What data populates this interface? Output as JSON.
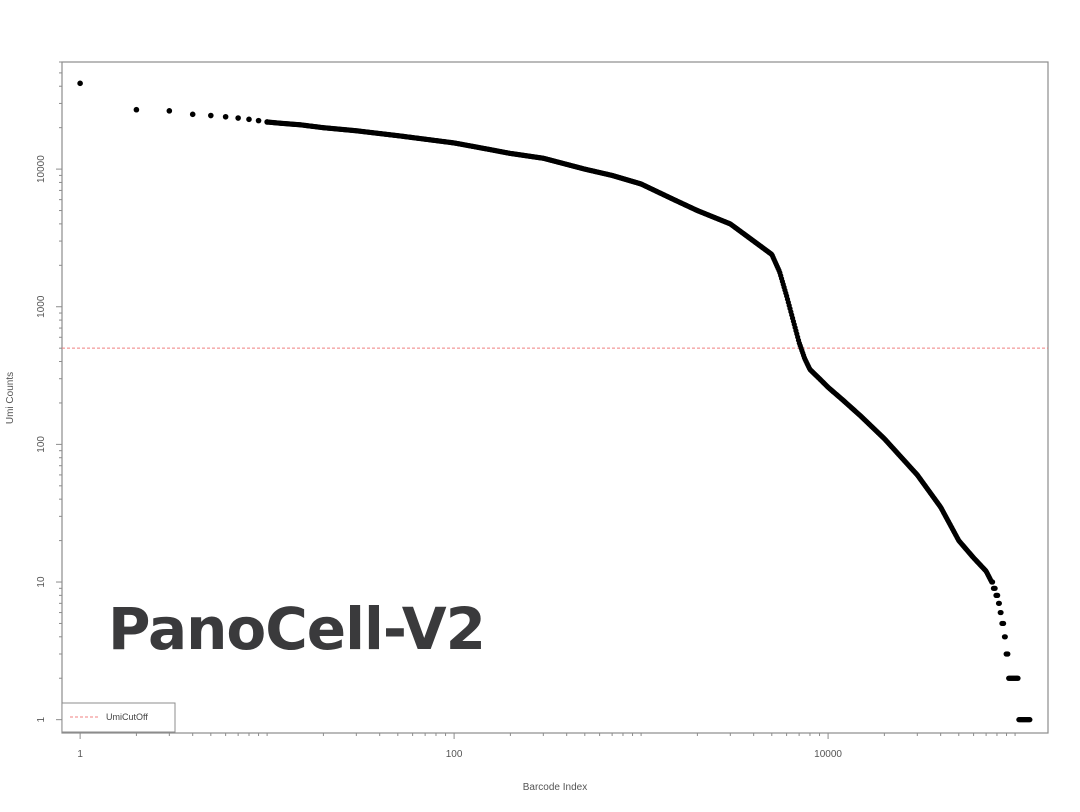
{
  "overlay_label": "PanoCell-V2",
  "chart_data": {
    "type": "scatter",
    "xlabel": "Barcode Index",
    "ylabel": "Umi Counts",
    "x_scale": "log",
    "y_scale": "log",
    "xlim": [
      0.8,
      150000
    ],
    "ylim": [
      0.8,
      60000
    ],
    "x_ticks": [
      1,
      100,
      10000
    ],
    "x_tick_labels": [
      "1",
      "100",
      "10000"
    ],
    "y_ticks": [
      1,
      10,
      100,
      1000,
      10000
    ],
    "y_tick_labels": [
      "1",
      "10",
      "100",
      "1000",
      "10000"
    ],
    "grid": false,
    "legend": {
      "position": "bottom-left",
      "entries": [
        {
          "name": "UmiCutOff",
          "color": "#f08080",
          "style": "dashed"
        }
      ]
    },
    "cutoff_line": {
      "name": "UmiCutOff",
      "y": 500,
      "color": "#f08080"
    },
    "marker_color": "#000000",
    "series": [
      {
        "x": [
          1,
          2,
          3,
          4,
          5,
          6,
          7,
          8,
          9,
          10,
          12,
          15,
          20,
          30,
          50,
          70,
          100,
          150,
          200,
          300,
          500,
          700,
          1000,
          1500,
          2000,
          3000,
          4000,
          5000,
          5500,
          6000,
          6500,
          7000,
          7500,
          8000,
          9000,
          10000,
          12000,
          15000,
          20000,
          30000,
          40000,
          50000,
          60000,
          70000,
          75000,
          78000,
          80000,
          82000,
          84000,
          86000,
          88000,
          90000,
          95000,
          100000,
          110000,
          120000
        ],
        "y": [
          42000,
          27000,
          26500,
          25000,
          24500,
          24000,
          23500,
          23000,
          22500,
          22000,
          21500,
          21000,
          20000,
          19000,
          17500,
          16500,
          15500,
          14000,
          13000,
          12000,
          10000,
          9000,
          7800,
          6000,
          5000,
          4000,
          3000,
          2400,
          1800,
          1200,
          800,
          550,
          420,
          350,
          300,
          260,
          210,
          160,
          110,
          60,
          35,
          20,
          15,
          12,
          10,
          9,
          8,
          7,
          6,
          5,
          4,
          3,
          2,
          2,
          1,
          1
        ]
      }
    ]
  }
}
